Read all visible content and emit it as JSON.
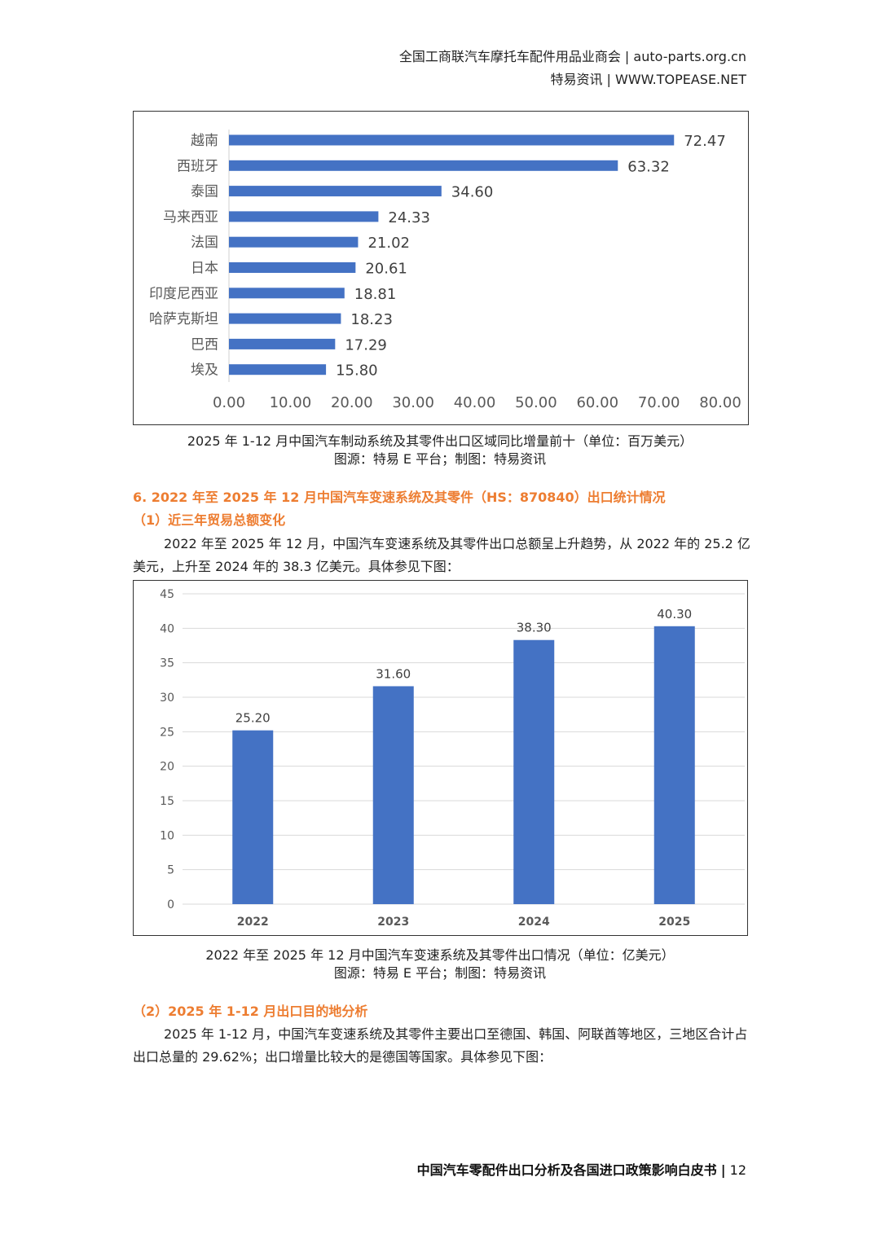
{
  "header": {
    "line1": "全国工商联汽车摩托车配件用品业商会 | auto-parts.org.cn",
    "line2": "特易资讯 | WWW.TOPEASE.NET"
  },
  "figure1": {
    "caption": "2025 年 1-12 月中国汽车制动系统及其零件出口区域同比增量前十（单位：百万美元）",
    "source": "图源：特易 E 平台；制图：特易资讯"
  },
  "section6": {
    "title": "6. 2022 年至 2025 年 12 月中国汽车变速系统及其零件（HS：870840）出口统计情况",
    "sub1": "（1）近三年贸易总额变化",
    "para1_line1": "2022 年至 2025 年 12 月，中国汽车变速系统及其零件出口总额呈上升趋势，从 2022 年的 25.2 亿",
    "para1_line2": "美元，上升至 2024 年的 38.3 亿美元。具体参见下图："
  },
  "figure2": {
    "caption": "2022 年至 2025 年 12 月中国汽车变速系统及其零件出口情况（单位：亿美元）",
    "source": "图源：特易 E 平台；制图：特易资讯"
  },
  "section6b": {
    "sub2": "（2）2025 年 1-12 月出口目的地分析",
    "para2_line1": "2025 年 1-12 月，中国汽车变速系统及其零件主要出口至德国、韩国、阿联酋等地区，三地区合计占",
    "para2_line2": "出口总量的 29.62%；出口增量比较大的是德国等国家。具体参见下图："
  },
  "footer": {
    "title": "中国汽车零配件出口分析及各国进口政策影响白皮书",
    "separator": "|",
    "page": "12"
  },
  "colors": {
    "bar": "#4472c4",
    "accent": "#ed7d31"
  },
  "chart_data": [
    {
      "type": "bar",
      "orientation": "horizontal",
      "title": "",
      "categories": [
        "越南",
        "西班牙",
        "泰国",
        "马来西亚",
        "法国",
        "日本",
        "印度尼西亚",
        "哈萨克斯坦",
        "巴西",
        "埃及"
      ],
      "values": [
        72.47,
        63.32,
        34.6,
        24.33,
        21.02,
        20.61,
        18.81,
        18.23,
        17.29,
        15.8
      ],
      "labels": [
        "72.47",
        "63.32",
        "34.60",
        "24.33",
        "21.02",
        "20.61",
        "18.81",
        "18.23",
        "17.29",
        "15.80"
      ],
      "xlim": [
        0,
        80
      ],
      "ticks": [
        "0.00",
        "10.00",
        "20.00",
        "30.00",
        "40.00",
        "50.00",
        "60.00",
        "70.00",
        "80.00"
      ],
      "grid": false,
      "xlabel": "",
      "ylabel": ""
    },
    {
      "type": "bar",
      "orientation": "vertical",
      "title": "",
      "categories": [
        "2022",
        "2023",
        "2024",
        "2025"
      ],
      "values": [
        25.2,
        31.6,
        38.3,
        40.3
      ],
      "labels": [
        "25.20",
        "31.60",
        "38.30",
        "40.30"
      ],
      "ylim": [
        0,
        45
      ],
      "ticks": [
        "0",
        "5",
        "10",
        "15",
        "20",
        "25",
        "30",
        "35",
        "40",
        "45"
      ],
      "grid": true,
      "xlabel": "",
      "ylabel": ""
    }
  ]
}
